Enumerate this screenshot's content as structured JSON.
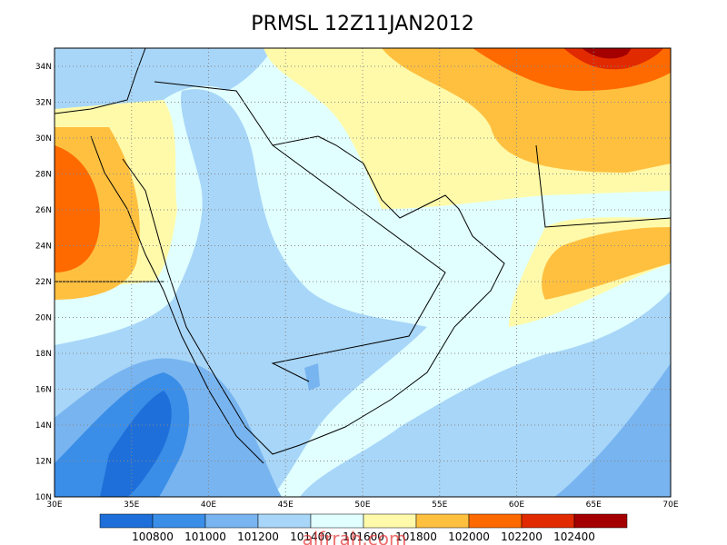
{
  "title": "PRMSL 12Z11JAN2012",
  "lon_ticks": [
    {
      "value": 30,
      "label": "30E"
    },
    {
      "value": 35,
      "label": "35E"
    },
    {
      "value": 40,
      "label": "40E"
    },
    {
      "value": 45,
      "label": "45E"
    },
    {
      "value": 50,
      "label": "50E"
    },
    {
      "value": 55,
      "label": "55E"
    },
    {
      "value": 60,
      "label": "60E"
    },
    {
      "value": 65,
      "label": "65E"
    },
    {
      "value": 70,
      "label": "70E"
    }
  ],
  "lat_ticks": [
    {
      "value": 10,
      "label": "10N"
    },
    {
      "value": 12,
      "label": "12N"
    },
    {
      "value": 14,
      "label": "14N"
    },
    {
      "value": 16,
      "label": "16N"
    },
    {
      "value": 18,
      "label": "18N"
    },
    {
      "value": 20,
      "label": "20N"
    },
    {
      "value": 22,
      "label": "22N"
    },
    {
      "value": 24,
      "label": "24N"
    },
    {
      "value": 26,
      "label": "26N"
    },
    {
      "value": 28,
      "label": "28N"
    },
    {
      "value": 30,
      "label": "30N"
    },
    {
      "value": 32,
      "label": "32N"
    },
    {
      "value": 34,
      "label": "34N"
    }
  ],
  "colorbar": {
    "colors": [
      "#1e6fd9",
      "#3a8ee8",
      "#78b4f0",
      "#a8d6f8",
      "#e1ffff",
      "#fffaaa",
      "#ffc040",
      "#ff6a00",
      "#e12a00",
      "#a50000"
    ],
    "levels": [
      100800,
      101000,
      101200,
      101400,
      101600,
      101800,
      102000,
      102200,
      102400
    ]
  },
  "watermark": "alfrrah.com"
}
